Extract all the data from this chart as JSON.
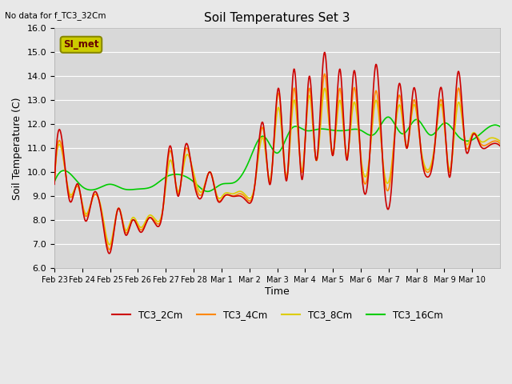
{
  "title": "Soil Temperatures Set 3",
  "xlabel": "Time",
  "ylabel": "Soil Temperature (C)",
  "note": "No data for f_TC3_32Cm",
  "ylim": [
    6.0,
    16.0
  ],
  "yticks": [
    6.0,
    7.0,
    8.0,
    9.0,
    10.0,
    11.0,
    12.0,
    13.0,
    14.0,
    15.0,
    16.0
  ],
  "background_color": "#e8e8e8",
  "plot_bg_color": "#d8d8d8",
  "grid_color": "#ffffff",
  "legend_label": "SI_met",
  "legend_bg": "#cccc00",
  "series_colors": {
    "TC3_2Cm": "#cc0000",
    "TC3_4Cm": "#ff8800",
    "TC3_8Cm": "#ddcc00",
    "TC3_16Cm": "#00cc00"
  },
  "xtick_labels": [
    "Feb 23",
    "Feb 24",
    "Feb 25",
    "Feb 26",
    "Feb 27",
    "Feb 28",
    "Mar 1",
    "Mar 2",
    "Mar 3",
    "Mar 4",
    "Mar 5",
    "Mar 6",
    "Mar 7",
    "Mar 8",
    "Mar 9",
    "Mar 10"
  ],
  "tc3_2cm_knots_t": [
    0.0,
    0.3,
    0.55,
    0.85,
    1.1,
    1.4,
    1.7,
    2.0,
    2.3,
    2.55,
    2.8,
    3.1,
    3.4,
    3.65,
    3.9,
    4.15,
    4.45,
    4.7,
    4.95,
    5.3,
    5.6,
    5.85,
    6.1,
    6.4,
    6.7,
    6.9,
    7.2,
    7.5,
    7.75,
    8.05,
    8.35,
    8.6,
    8.9,
    9.15,
    9.4,
    9.7,
    10.0,
    10.25,
    10.5,
    10.75,
    11.0,
    11.3,
    11.55,
    11.8,
    12.1,
    12.4,
    12.65,
    12.9,
    13.15,
    13.4,
    13.65,
    13.9,
    14.2,
    14.5,
    14.75,
    15.0,
    15.3,
    15.6,
    15.85,
    16.0
  ],
  "tc3_2cm_knots_v": [
    9.5,
    11.1,
    8.8,
    9.5,
    8.0,
    9.1,
    8.2,
    6.65,
    8.5,
    7.4,
    8.0,
    7.5,
    8.1,
    7.8,
    8.5,
    11.1,
    9.0,
    11.1,
    10.0,
    9.0,
    10.0,
    8.85,
    9.0,
    9.0,
    9.0,
    8.8,
    9.5,
    12.0,
    9.5,
    13.5,
    9.7,
    14.3,
    9.7,
    14.0,
    10.5,
    15.0,
    10.7,
    14.3,
    10.5,
    14.2,
    10.5,
    10.3,
    14.5,
    10.2,
    9.3,
    13.7,
    11.0,
    13.5,
    11.0,
    9.8,
    11.0,
    13.5,
    9.8,
    14.2,
    11.1,
    11.5,
    11.1,
    11.1,
    11.2,
    11.1
  ],
  "tc3_4cm_knots_t": [
    0.0,
    0.3,
    0.55,
    0.85,
    1.1,
    1.4,
    1.7,
    2.0,
    2.3,
    2.55,
    2.8,
    3.1,
    3.4,
    3.65,
    3.9,
    4.15,
    4.45,
    4.7,
    4.95,
    5.3,
    5.6,
    5.85,
    6.1,
    6.4,
    6.7,
    6.9,
    7.2,
    7.5,
    7.75,
    8.05,
    8.35,
    8.6,
    8.9,
    9.15,
    9.4,
    9.7,
    10.0,
    10.25,
    10.5,
    10.75,
    11.0,
    11.3,
    11.55,
    11.8,
    12.1,
    12.4,
    12.65,
    12.9,
    13.15,
    13.4,
    13.65,
    13.9,
    14.2,
    14.5,
    14.75,
    15.0,
    15.3,
    15.6,
    15.85,
    16.0
  ],
  "tc3_4cm_knots_v": [
    9.6,
    10.8,
    9.0,
    9.4,
    8.2,
    9.0,
    8.3,
    6.8,
    8.5,
    7.5,
    8.0,
    7.6,
    8.1,
    7.9,
    8.5,
    10.9,
    9.1,
    10.9,
    10.1,
    9.1,
    10.0,
    8.9,
    9.0,
    9.0,
    9.1,
    8.9,
    9.5,
    11.8,
    9.6,
    13.3,
    9.8,
    13.5,
    10.0,
    13.5,
    10.5,
    14.1,
    10.7,
    13.5,
    10.6,
    13.5,
    10.6,
    10.4,
    13.4,
    10.3,
    10.0,
    13.2,
    11.0,
    13.0,
    11.0,
    10.0,
    11.0,
    13.0,
    10.0,
    13.5,
    11.2,
    11.5,
    11.2,
    11.2,
    11.3,
    11.2
  ],
  "tc3_8cm_knots_t": [
    0.0,
    0.3,
    0.55,
    0.85,
    1.1,
    1.4,
    1.7,
    2.0,
    2.3,
    2.55,
    2.8,
    3.1,
    3.4,
    3.65,
    3.9,
    4.15,
    4.45,
    4.7,
    4.95,
    5.3,
    5.6,
    5.85,
    6.1,
    6.4,
    6.7,
    6.9,
    7.2,
    7.5,
    7.75,
    8.05,
    8.35,
    8.6,
    8.9,
    9.15,
    9.4,
    9.7,
    10.0,
    10.25,
    10.5,
    10.75,
    11.0,
    11.3,
    11.55,
    11.8,
    12.1,
    12.4,
    12.65,
    12.9,
    13.15,
    13.4,
    13.65,
    13.9,
    14.2,
    14.5,
    14.75,
    15.0,
    15.3,
    15.6,
    15.85,
    16.0
  ],
  "tc3_8cm_knots_v": [
    9.65,
    10.7,
    9.1,
    9.4,
    8.3,
    9.0,
    8.4,
    7.0,
    8.5,
    7.6,
    8.1,
    7.7,
    8.2,
    8.0,
    8.5,
    10.5,
    9.2,
    10.6,
    10.2,
    9.2,
    10.0,
    9.0,
    9.1,
    9.1,
    9.2,
    9.0,
    9.5,
    11.4,
    9.7,
    12.7,
    9.8,
    13.0,
    10.1,
    13.2,
    10.5,
    13.5,
    10.8,
    13.0,
    10.7,
    12.9,
    10.7,
    10.5,
    13.0,
    10.4,
    10.2,
    12.8,
    11.1,
    12.8,
    11.1,
    10.1,
    11.1,
    12.8,
    10.1,
    12.9,
    11.3,
    11.6,
    11.3,
    11.4,
    11.4,
    11.3
  ],
  "tc3_16cm_knots_t": [
    0.0,
    0.5,
    1.0,
    1.5,
    2.0,
    2.5,
    3.0,
    3.5,
    4.0,
    4.5,
    5.0,
    5.5,
    6.0,
    6.5,
    7.0,
    7.5,
    8.0,
    8.5,
    9.0,
    9.5,
    10.0,
    10.5,
    11.0,
    11.5,
    12.0,
    12.5,
    13.0,
    13.5,
    14.0,
    14.5,
    15.0,
    15.5,
    16.0
  ],
  "tc3_16cm_knots_v": [
    9.6,
    10.0,
    9.4,
    9.3,
    9.5,
    9.3,
    9.3,
    9.4,
    9.8,
    9.9,
    9.6,
    9.2,
    9.5,
    9.6,
    10.5,
    11.5,
    10.8,
    11.8,
    11.75,
    11.8,
    11.75,
    11.75,
    11.75,
    11.6,
    12.3,
    11.6,
    12.2,
    11.55,
    12.05,
    11.5,
    11.35,
    11.8,
    11.9
  ]
}
